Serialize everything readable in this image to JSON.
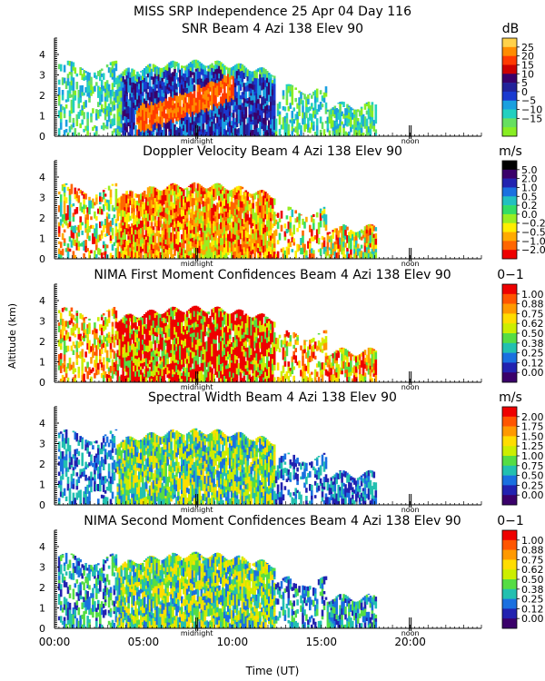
{
  "figure": {
    "title": "MISS SRP Independence  25 Apr 04 Day 116",
    "ylabel": "Altitude (km)",
    "xlabel": "Time (UT)",
    "x_ticks": [
      "00:00",
      "05:00",
      "10:00",
      "15:00",
      "20:00"
    ],
    "markers": [
      "midnight",
      "noon"
    ]
  },
  "chart_data": [
    {
      "type": "heatmap",
      "title": "SNR Beam 4 Azi 138 Elev 90",
      "unit": "dB",
      "y_ticks": [
        "0",
        "1",
        "2",
        "3",
        "4"
      ],
      "ylim": [
        0,
        4.8
      ],
      "xlim": [
        0,
        24
      ],
      "colorbar": {
        "labels": [
          "25",
          "20",
          "15",
          "10",
          "5",
          "0",
          "−5",
          "−10",
          "−15"
        ],
        "colors": [
          "#ffd24a",
          "#ff8c00",
          "#ff3a00",
          "#cc0000",
          "#3a006a",
          "#22229a",
          "#1a3ad0",
          "#1aa0e0",
          "#22d0c0",
          "#66e060",
          "#88ee22"
        ]
      }
    },
    {
      "type": "heatmap",
      "title": "Doppler Velocity Beam 4 Azi 138 Elev 90",
      "unit": "m/s",
      "y_ticks": [
        "0",
        "1",
        "2",
        "3",
        "4"
      ],
      "ylim": [
        0,
        4.8
      ],
      "xlim": [
        0,
        24
      ],
      "colorbar": {
        "labels": [
          "5.0",
          "2.0",
          "1.0",
          "0.5",
          "0.2",
          "0.0",
          "−0.2",
          "−0.5",
          "−1.0",
          "−2.0"
        ],
        "colors": [
          "#000000",
          "#3a006a",
          "#2222b0",
          "#1a70e0",
          "#22c0c0",
          "#33dd66",
          "#99ee22",
          "#ffee00",
          "#ffaa00",
          "#ff6600",
          "#ee0000"
        ]
      }
    },
    {
      "type": "heatmap",
      "title": "NIMA First Moment Confidences Beam 4 Azi 138 Elev 90",
      "unit": "0−1",
      "y_ticks": [
        "0",
        "1",
        "2",
        "3",
        "4"
      ],
      "ylim": [
        0,
        4.8
      ],
      "xlim": [
        0,
        24
      ],
      "colorbar": {
        "labels": [
          "1.00",
          "0.88",
          "0.75",
          "0.62",
          "0.50",
          "0.38",
          "0.25",
          "0.12",
          "0.00"
        ],
        "colors": [
          "#ee0000",
          "#ff5500",
          "#ff9900",
          "#ffdd00",
          "#ccee00",
          "#55dd44",
          "#22c0b0",
          "#1a70e0",
          "#2222b0",
          "#3a006a"
        ]
      }
    },
    {
      "type": "heatmap",
      "title": "Spectral Width Beam 4 Azi 138 Elev 90",
      "unit": "m/s",
      "y_ticks": [
        "0",
        "1",
        "2",
        "3",
        "4"
      ],
      "ylim": [
        0,
        4.8
      ],
      "xlim": [
        0,
        24
      ],
      "colorbar": {
        "labels": [
          "2.00",
          "1.75",
          "1.50",
          "1.25",
          "1.00",
          "0.75",
          "0.50",
          "0.25",
          "0.00"
        ],
        "colors": [
          "#ee0000",
          "#ff5500",
          "#ff9900",
          "#ffdd00",
          "#ccee00",
          "#55dd44",
          "#22c0b0",
          "#1a70e0",
          "#2222b0",
          "#3a006a"
        ]
      }
    },
    {
      "type": "heatmap",
      "title": "NIMA Second Moment Confidences Beam 4 Azi 138 Elev 90",
      "unit": "0−1",
      "y_ticks": [
        "0",
        "1",
        "2",
        "3",
        "4"
      ],
      "ylim": [
        0,
        4.8
      ],
      "xlim": [
        0,
        24
      ],
      "colorbar": {
        "labels": [
          "1.00",
          "0.88",
          "0.75",
          "0.62",
          "0.50",
          "0.38",
          "0.25",
          "0.12",
          "0.00"
        ],
        "colors": [
          "#ee0000",
          "#ff5500",
          "#ff9900",
          "#ffdd00",
          "#ccee00",
          "#55dd44",
          "#22c0b0",
          "#1a70e0",
          "#2222b0",
          "#3a006a"
        ]
      }
    }
  ]
}
